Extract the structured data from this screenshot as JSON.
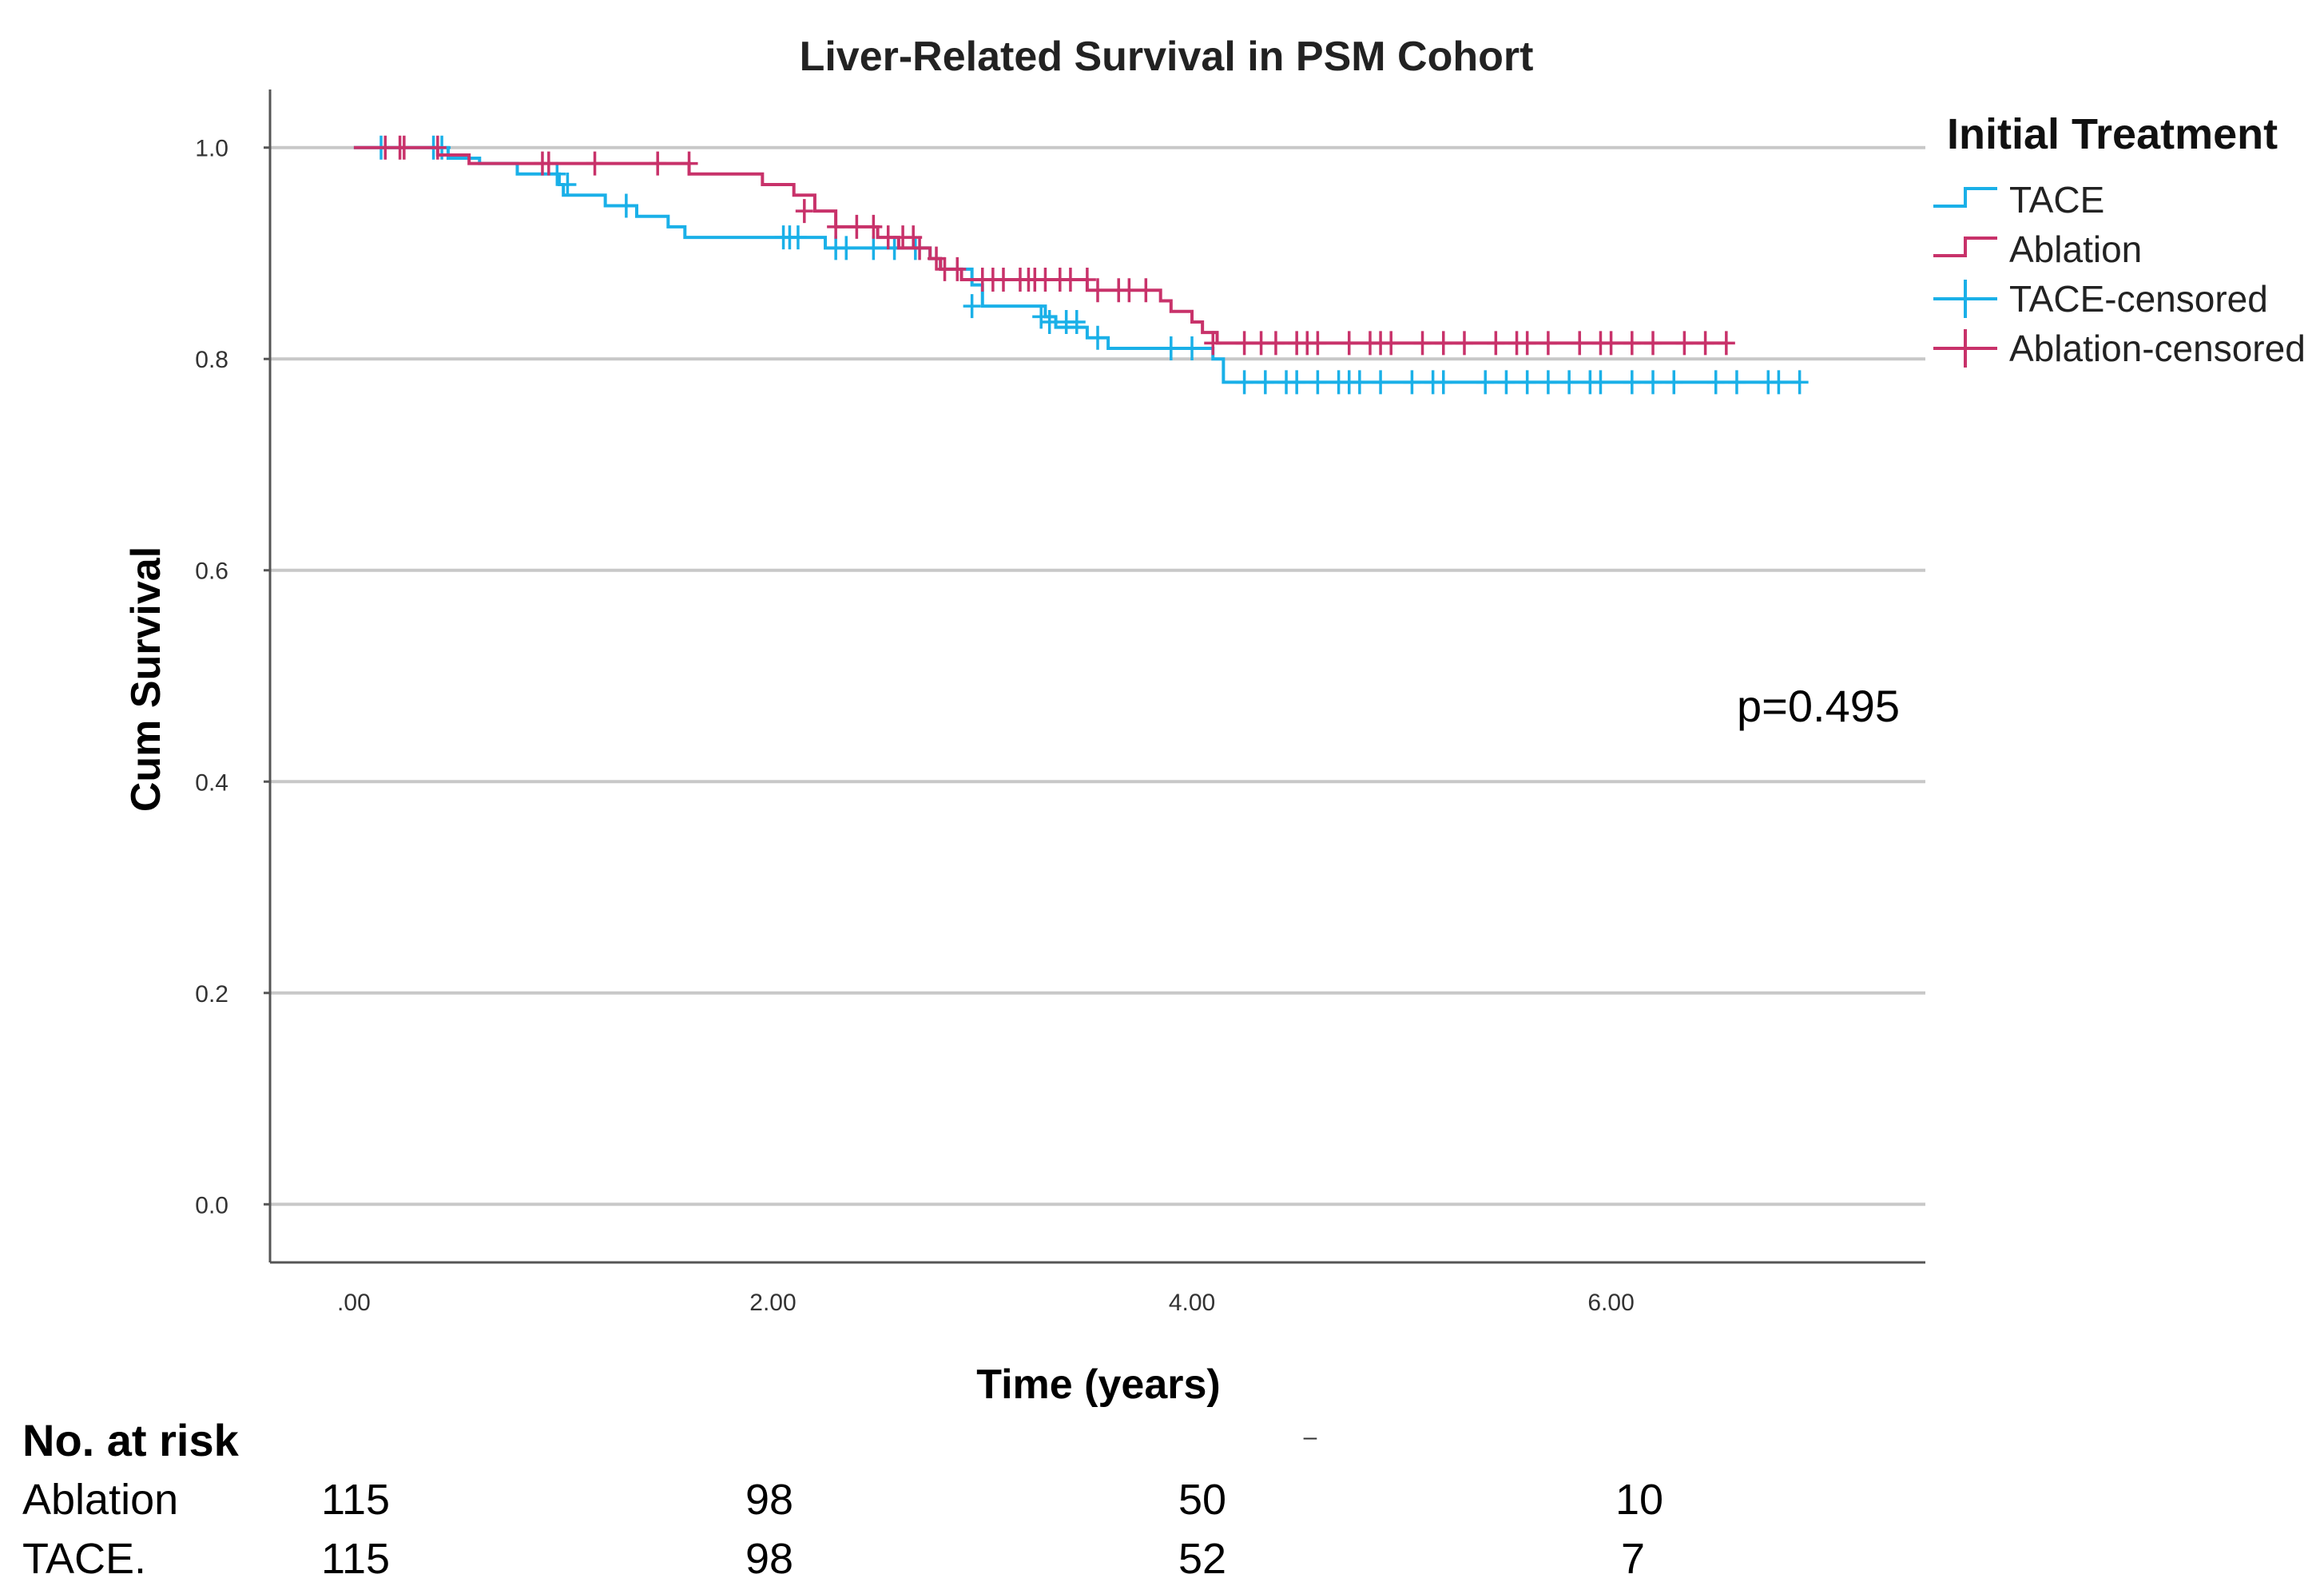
{
  "chart_data": {
    "type": "line",
    "subtype": "kaplan-meier",
    "title": "Liver-Related Survival in PSM Cohort",
    "xlabel": "Time (years)",
    "ylabel": "Cum Survival",
    "xlim": [
      -0.4,
      7.5
    ],
    "ylim": [
      -0.055,
      1.055
    ],
    "x_ticks": [
      0,
      2,
      4,
      6
    ],
    "x_tick_labels": [
      ".00",
      "2.00",
      "4.00",
      "6.00"
    ],
    "y_ticks": [
      0,
      0.2,
      0.4,
      0.6,
      0.8,
      1.0
    ],
    "y_tick_labels": [
      "0.0",
      "0.2",
      "0.4",
      "0.6",
      "0.8",
      "1.0"
    ],
    "grid": true,
    "legend_title": "Initial Treatment",
    "legend_position": "top-right",
    "legend": [
      {
        "label": "TACE",
        "kind": "step",
        "color": "#1ab0e8"
      },
      {
        "label": "Ablation",
        "kind": "step",
        "color": "#c8326a"
      },
      {
        "label": "TACE-censored",
        "kind": "censor",
        "color": "#1ab0e8"
      },
      {
        "label": "Ablation-censored",
        "kind": "censor",
        "color": "#c8326a"
      }
    ],
    "annotation": "p=0.495",
    "series": [
      {
        "name": "TACE",
        "color": "#1ab0e8",
        "steps": [
          [
            0,
            1.0
          ],
          [
            0.45,
            0.99
          ],
          [
            0.6,
            0.985
          ],
          [
            0.78,
            0.975
          ],
          [
            0.98,
            0.965
          ],
          [
            1.0,
            0.955
          ],
          [
            1.2,
            0.945
          ],
          [
            1.35,
            0.935
          ],
          [
            1.5,
            0.925
          ],
          [
            1.58,
            0.915
          ],
          [
            2.25,
            0.905
          ],
          [
            2.45,
            0.905
          ],
          [
            2.75,
            0.895
          ],
          [
            2.8,
            0.885
          ],
          [
            2.95,
            0.87
          ],
          [
            3.0,
            0.85
          ],
          [
            3.3,
            0.84
          ],
          [
            3.35,
            0.83
          ],
          [
            3.5,
            0.82
          ],
          [
            3.6,
            0.81
          ],
          [
            4.1,
            0.8
          ],
          [
            4.15,
            0.778
          ],
          [
            6.9,
            0.778
          ]
        ],
        "censored": [
          [
            0.13,
            1.0
          ],
          [
            0.38,
            1.0
          ],
          [
            0.42,
            1.0
          ],
          [
            0.97,
            0.975
          ],
          [
            1.02,
            0.965
          ],
          [
            1.3,
            0.945
          ],
          [
            2.05,
            0.915
          ],
          [
            2.08,
            0.915
          ],
          [
            2.12,
            0.915
          ],
          [
            2.3,
            0.905
          ],
          [
            2.35,
            0.905
          ],
          [
            2.48,
            0.905
          ],
          [
            2.58,
            0.905
          ],
          [
            2.68,
            0.905
          ],
          [
            2.95,
            0.85
          ],
          [
            3.28,
            0.84
          ],
          [
            3.32,
            0.835
          ],
          [
            3.4,
            0.835
          ],
          [
            3.45,
            0.835
          ],
          [
            3.55,
            0.82
          ],
          [
            3.9,
            0.81
          ],
          [
            4.0,
            0.81
          ],
          [
            4.25,
            0.778
          ],
          [
            4.35,
            0.778
          ],
          [
            4.45,
            0.778
          ],
          [
            4.5,
            0.778
          ],
          [
            4.6,
            0.778
          ],
          [
            4.7,
            0.778
          ],
          [
            4.75,
            0.778
          ],
          [
            4.8,
            0.778
          ],
          [
            4.9,
            0.778
          ],
          [
            5.05,
            0.778
          ],
          [
            5.15,
            0.778
          ],
          [
            5.2,
            0.778
          ],
          [
            5.4,
            0.778
          ],
          [
            5.5,
            0.778
          ],
          [
            5.6,
            0.778
          ],
          [
            5.7,
            0.778
          ],
          [
            5.8,
            0.778
          ],
          [
            5.9,
            0.778
          ],
          [
            5.95,
            0.778
          ],
          [
            6.1,
            0.778
          ],
          [
            6.2,
            0.778
          ],
          [
            6.3,
            0.778
          ],
          [
            6.5,
            0.778
          ],
          [
            6.6,
            0.778
          ],
          [
            6.75,
            0.778
          ],
          [
            6.8,
            0.778
          ],
          [
            6.9,
            0.778
          ]
        ]
      },
      {
        "name": "Ablation",
        "color": "#c8326a",
        "steps": [
          [
            0,
            1.0
          ],
          [
            0.4,
            0.993
          ],
          [
            0.55,
            0.985
          ],
          [
            1.6,
            0.975
          ],
          [
            1.95,
            0.965
          ],
          [
            2.1,
            0.955
          ],
          [
            2.2,
            0.94
          ],
          [
            2.3,
            0.925
          ],
          [
            2.5,
            0.915
          ],
          [
            2.6,
            0.905
          ],
          [
            2.75,
            0.895
          ],
          [
            2.8,
            0.885
          ],
          [
            2.9,
            0.875
          ],
          [
            3.5,
            0.865
          ],
          [
            3.85,
            0.855
          ],
          [
            3.9,
            0.845
          ],
          [
            4.0,
            0.835
          ],
          [
            4.05,
            0.825
          ],
          [
            4.12,
            0.815
          ],
          [
            6.55,
            0.815
          ]
        ],
        "censored": [
          [
            0.15,
            1.0
          ],
          [
            0.22,
            1.0
          ],
          [
            0.24,
            1.0
          ],
          [
            0.4,
            1.0
          ],
          [
            0.9,
            0.985
          ],
          [
            0.93,
            0.985
          ],
          [
            1.15,
            0.985
          ],
          [
            1.45,
            0.985
          ],
          [
            1.6,
            0.985
          ],
          [
            2.15,
            0.94
          ],
          [
            2.3,
            0.925
          ],
          [
            2.4,
            0.925
          ],
          [
            2.48,
            0.925
          ],
          [
            2.55,
            0.915
          ],
          [
            2.62,
            0.915
          ],
          [
            2.67,
            0.915
          ],
          [
            2.7,
            0.905
          ],
          [
            2.78,
            0.895
          ],
          [
            2.82,
            0.885
          ],
          [
            2.88,
            0.885
          ],
          [
            3.0,
            0.875
          ],
          [
            3.05,
            0.875
          ],
          [
            3.1,
            0.875
          ],
          [
            3.18,
            0.875
          ],
          [
            3.22,
            0.875
          ],
          [
            3.25,
            0.875
          ],
          [
            3.3,
            0.875
          ],
          [
            3.37,
            0.875
          ],
          [
            3.42,
            0.875
          ],
          [
            3.5,
            0.875
          ],
          [
            3.55,
            0.865
          ],
          [
            3.65,
            0.865
          ],
          [
            3.7,
            0.865
          ],
          [
            3.78,
            0.865
          ],
          [
            4.1,
            0.815
          ],
          [
            4.25,
            0.815
          ],
          [
            4.33,
            0.815
          ],
          [
            4.4,
            0.815
          ],
          [
            4.5,
            0.815
          ],
          [
            4.55,
            0.815
          ],
          [
            4.6,
            0.815
          ],
          [
            4.75,
            0.815
          ],
          [
            4.85,
            0.815
          ],
          [
            4.9,
            0.815
          ],
          [
            4.95,
            0.815
          ],
          [
            5.1,
            0.815
          ],
          [
            5.2,
            0.815
          ],
          [
            5.3,
            0.815
          ],
          [
            5.45,
            0.815
          ],
          [
            5.55,
            0.815
          ],
          [
            5.6,
            0.815
          ],
          [
            5.7,
            0.815
          ],
          [
            5.85,
            0.815
          ],
          [
            5.95,
            0.815
          ],
          [
            6.0,
            0.815
          ],
          [
            6.1,
            0.815
          ],
          [
            6.2,
            0.815
          ],
          [
            6.35,
            0.815
          ],
          [
            6.45,
            0.815
          ],
          [
            6.55,
            0.815
          ]
        ]
      }
    ],
    "risk_table": {
      "heading": "No. at risk",
      "stray_mark": "–",
      "rows": [
        {
          "label": "Ablation",
          "values": [
            "115",
            "98",
            "50",
            "10"
          ]
        },
        {
          "label": "TACE.",
          "values": [
            "115",
            "98",
            "52",
            "7"
          ]
        }
      ]
    }
  }
}
